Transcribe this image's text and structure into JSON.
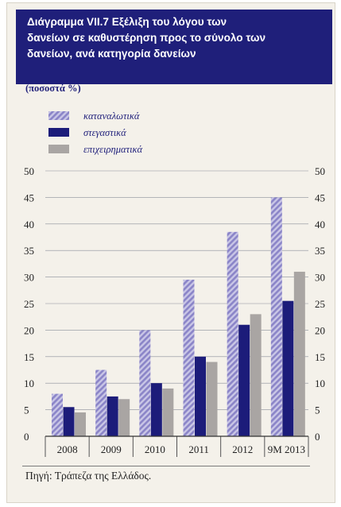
{
  "header": {
    "title_lines": [
      "Διάγραμμα VII.7  Εξέλιξη του λόγου των",
      "δανείων σε καθυστέρηση προς το σύνολο των",
      "δανείων, ανά κατηγορία δανείων"
    ]
  },
  "units_label": "(ποσοστά %)",
  "source": "Πηγή: Τράπεζα της Ελλάδος.",
  "colors": {
    "header_bg": "#1f1f7a",
    "consumer": "#8b85c8",
    "mortgage": "#1c1c7a",
    "business": "#a9a5a3",
    "background": "#f4f1ea"
  },
  "chart_data": {
    "type": "bar",
    "categories": [
      "2008",
      "2009",
      "2010",
      "2011",
      "2012",
      "9M 2013"
    ],
    "series": [
      {
        "name": "καταναλωτικά",
        "values": [
          8,
          12.5,
          20,
          29.5,
          38.5,
          45
        ],
        "pattern": "hatched"
      },
      {
        "name": "στεγαστικά",
        "values": [
          5.5,
          7.5,
          10,
          15,
          21,
          25.5
        ],
        "pattern": "solid"
      },
      {
        "name": "επιχειρηματικά",
        "values": [
          4.5,
          7,
          9,
          14,
          23,
          31
        ],
        "pattern": "solid"
      }
    ],
    "ylim": [
      0,
      50
    ],
    "yticks": [
      0,
      5,
      10,
      15,
      20,
      25,
      30,
      35,
      40,
      45,
      50
    ],
    "y_axis_both_sides": true,
    "legend_position": "top-left",
    "xlabel": "",
    "ylabel": ""
  }
}
